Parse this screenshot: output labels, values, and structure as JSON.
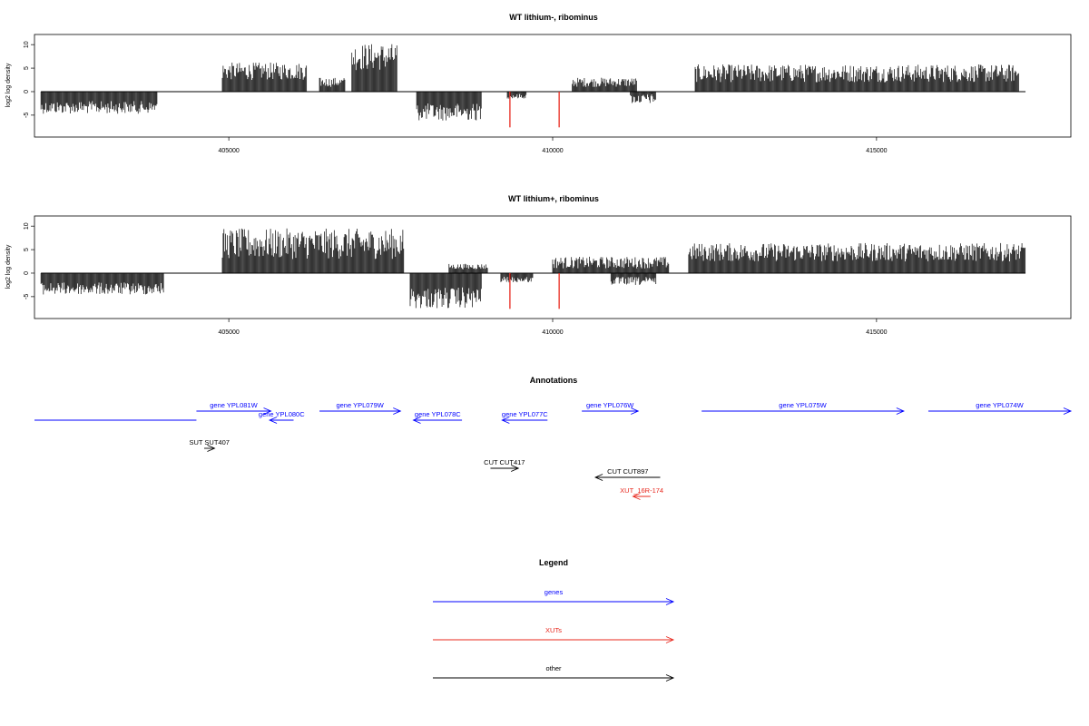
{
  "chart_data": [
    {
      "type": "bar",
      "title": "WT lithium-, ribominus",
      "ylabel": "log2 log density",
      "xlim": [
        402000,
        418000
      ],
      "ylim": [
        -8.5,
        11
      ],
      "xticks": [
        405000,
        410000,
        415000
      ],
      "yticks": [
        -5,
        0,
        5,
        10
      ],
      "series": [
        {
          "strand": "minus",
          "color": "#000000",
          "intervals": [
            [
              402100,
              403900,
              2.0,
              4.7
            ],
            [
              407900,
              408900,
              2.5,
              6.2
            ],
            [
              409300,
              409600,
              0.5,
              1.5
            ],
            [
              411200,
              411600,
              0.5,
              2.6
            ]
          ]
        },
        {
          "strand": "plus",
          "color": "#000000",
          "intervals": [
            [
              404900,
              406200,
              2.5,
              6.2
            ],
            [
              406900,
              407600,
              4.5,
              10.3
            ],
            [
              406400,
              406800,
              1.0,
              3.0
            ],
            [
              410300,
              411300,
              1.0,
              3.0
            ],
            [
              412200,
              417200,
              2.0,
              5.8
            ]
          ]
        },
        {
          "name": "red spikes",
          "color": "#e8281e",
          "spikes": [
            [
              409340,
              -7.6
            ],
            [
              410100,
              -7.6
            ]
          ]
        }
      ]
    },
    {
      "type": "bar",
      "title": "WT lithium+, ribominus",
      "ylabel": "log2 log density",
      "xlim": [
        402000,
        418000
      ],
      "ylim": [
        -8.5,
        11
      ],
      "xticks": [
        405000,
        410000,
        415000
      ],
      "yticks": [
        -5,
        0,
        5,
        10
      ],
      "series": [
        {
          "strand": "minus",
          "color": "#000000",
          "intervals": [
            [
              402100,
              404000,
              2.0,
              4.6
            ],
            [
              407800,
              408900,
              3.0,
              7.6
            ],
            [
              409200,
              409700,
              0.8,
              2.0
            ],
            [
              410900,
              411600,
              0.8,
              2.6
            ]
          ]
        },
        {
          "strand": "plus",
          "color": "#000000",
          "intervals": [
            [
              404900,
              407700,
              3.0,
              9.5
            ],
            [
              408400,
              409000,
              0.8,
              2.0
            ],
            [
              410000,
              411800,
              1.0,
              3.5
            ],
            [
              412100,
              417300,
              2.5,
              6.4
            ]
          ]
        },
        {
          "name": "red spikes",
          "color": "#e8281e",
          "spikes": [
            [
              409340,
              -7.6
            ],
            [
              410100,
              -7.6
            ]
          ]
        }
      ]
    }
  ],
  "annotations": {
    "title": "Annotations",
    "features": [
      {
        "label": "",
        "start": 402000,
        "end": 404500,
        "dir": "none",
        "color": "#0000ff",
        "row": 1
      },
      {
        "label": "gene YPL081W",
        "start": 404500,
        "end": 405650,
        "dir": "right",
        "color": "#0000ff",
        "row": 0
      },
      {
        "label": "gene YPL080C",
        "start": 405630,
        "end": 406000,
        "dir": "left",
        "color": "#0000ff",
        "row": 1
      },
      {
        "label": "gene YPL079W",
        "start": 406400,
        "end": 407650,
        "dir": "right",
        "color": "#0000ff",
        "row": 0
      },
      {
        "label": "gene YPL078C",
        "start": 407850,
        "end": 408600,
        "dir": "left",
        "color": "#0000ff",
        "row": 1
      },
      {
        "label": "gene YPL077C",
        "start": 409220,
        "end": 409920,
        "dir": "left",
        "color": "#0000ff",
        "row": 1
      },
      {
        "label": "gene YPL076W",
        "start": 410450,
        "end": 411320,
        "dir": "right",
        "color": "#0000ff",
        "row": 0
      },
      {
        "label": "gene YPL075W",
        "start": 412300,
        "end": 415420,
        "dir": "right",
        "color": "#0000ff",
        "row": 0
      },
      {
        "label": "gene YPL074W",
        "start": 415800,
        "end": 418000,
        "dir": "right",
        "color": "#0000ff",
        "row": 0
      },
      {
        "label": "SUT SUT407",
        "start": 404620,
        "end": 404780,
        "dir": "right",
        "color": "#000000",
        "row": 3
      },
      {
        "label": "CUT CUT417",
        "start": 409040,
        "end": 409470,
        "dir": "right",
        "color": "#000000",
        "row": 5
      },
      {
        "label": "CUT CUT897",
        "start": 410660,
        "end": 411660,
        "dir": "left",
        "color": "#000000",
        "row": 6
      },
      {
        "label": "XUT_16R-174",
        "start": 411240,
        "end": 411510,
        "dir": "left",
        "color": "#e8281e",
        "row": 7
      }
    ]
  },
  "legend": {
    "title": "Legend",
    "items": [
      {
        "label": "genes",
        "color": "#0000ff"
      },
      {
        "label": "XUTs",
        "color": "#e8281e"
      },
      {
        "label": "other",
        "color": "#000000"
      }
    ]
  }
}
